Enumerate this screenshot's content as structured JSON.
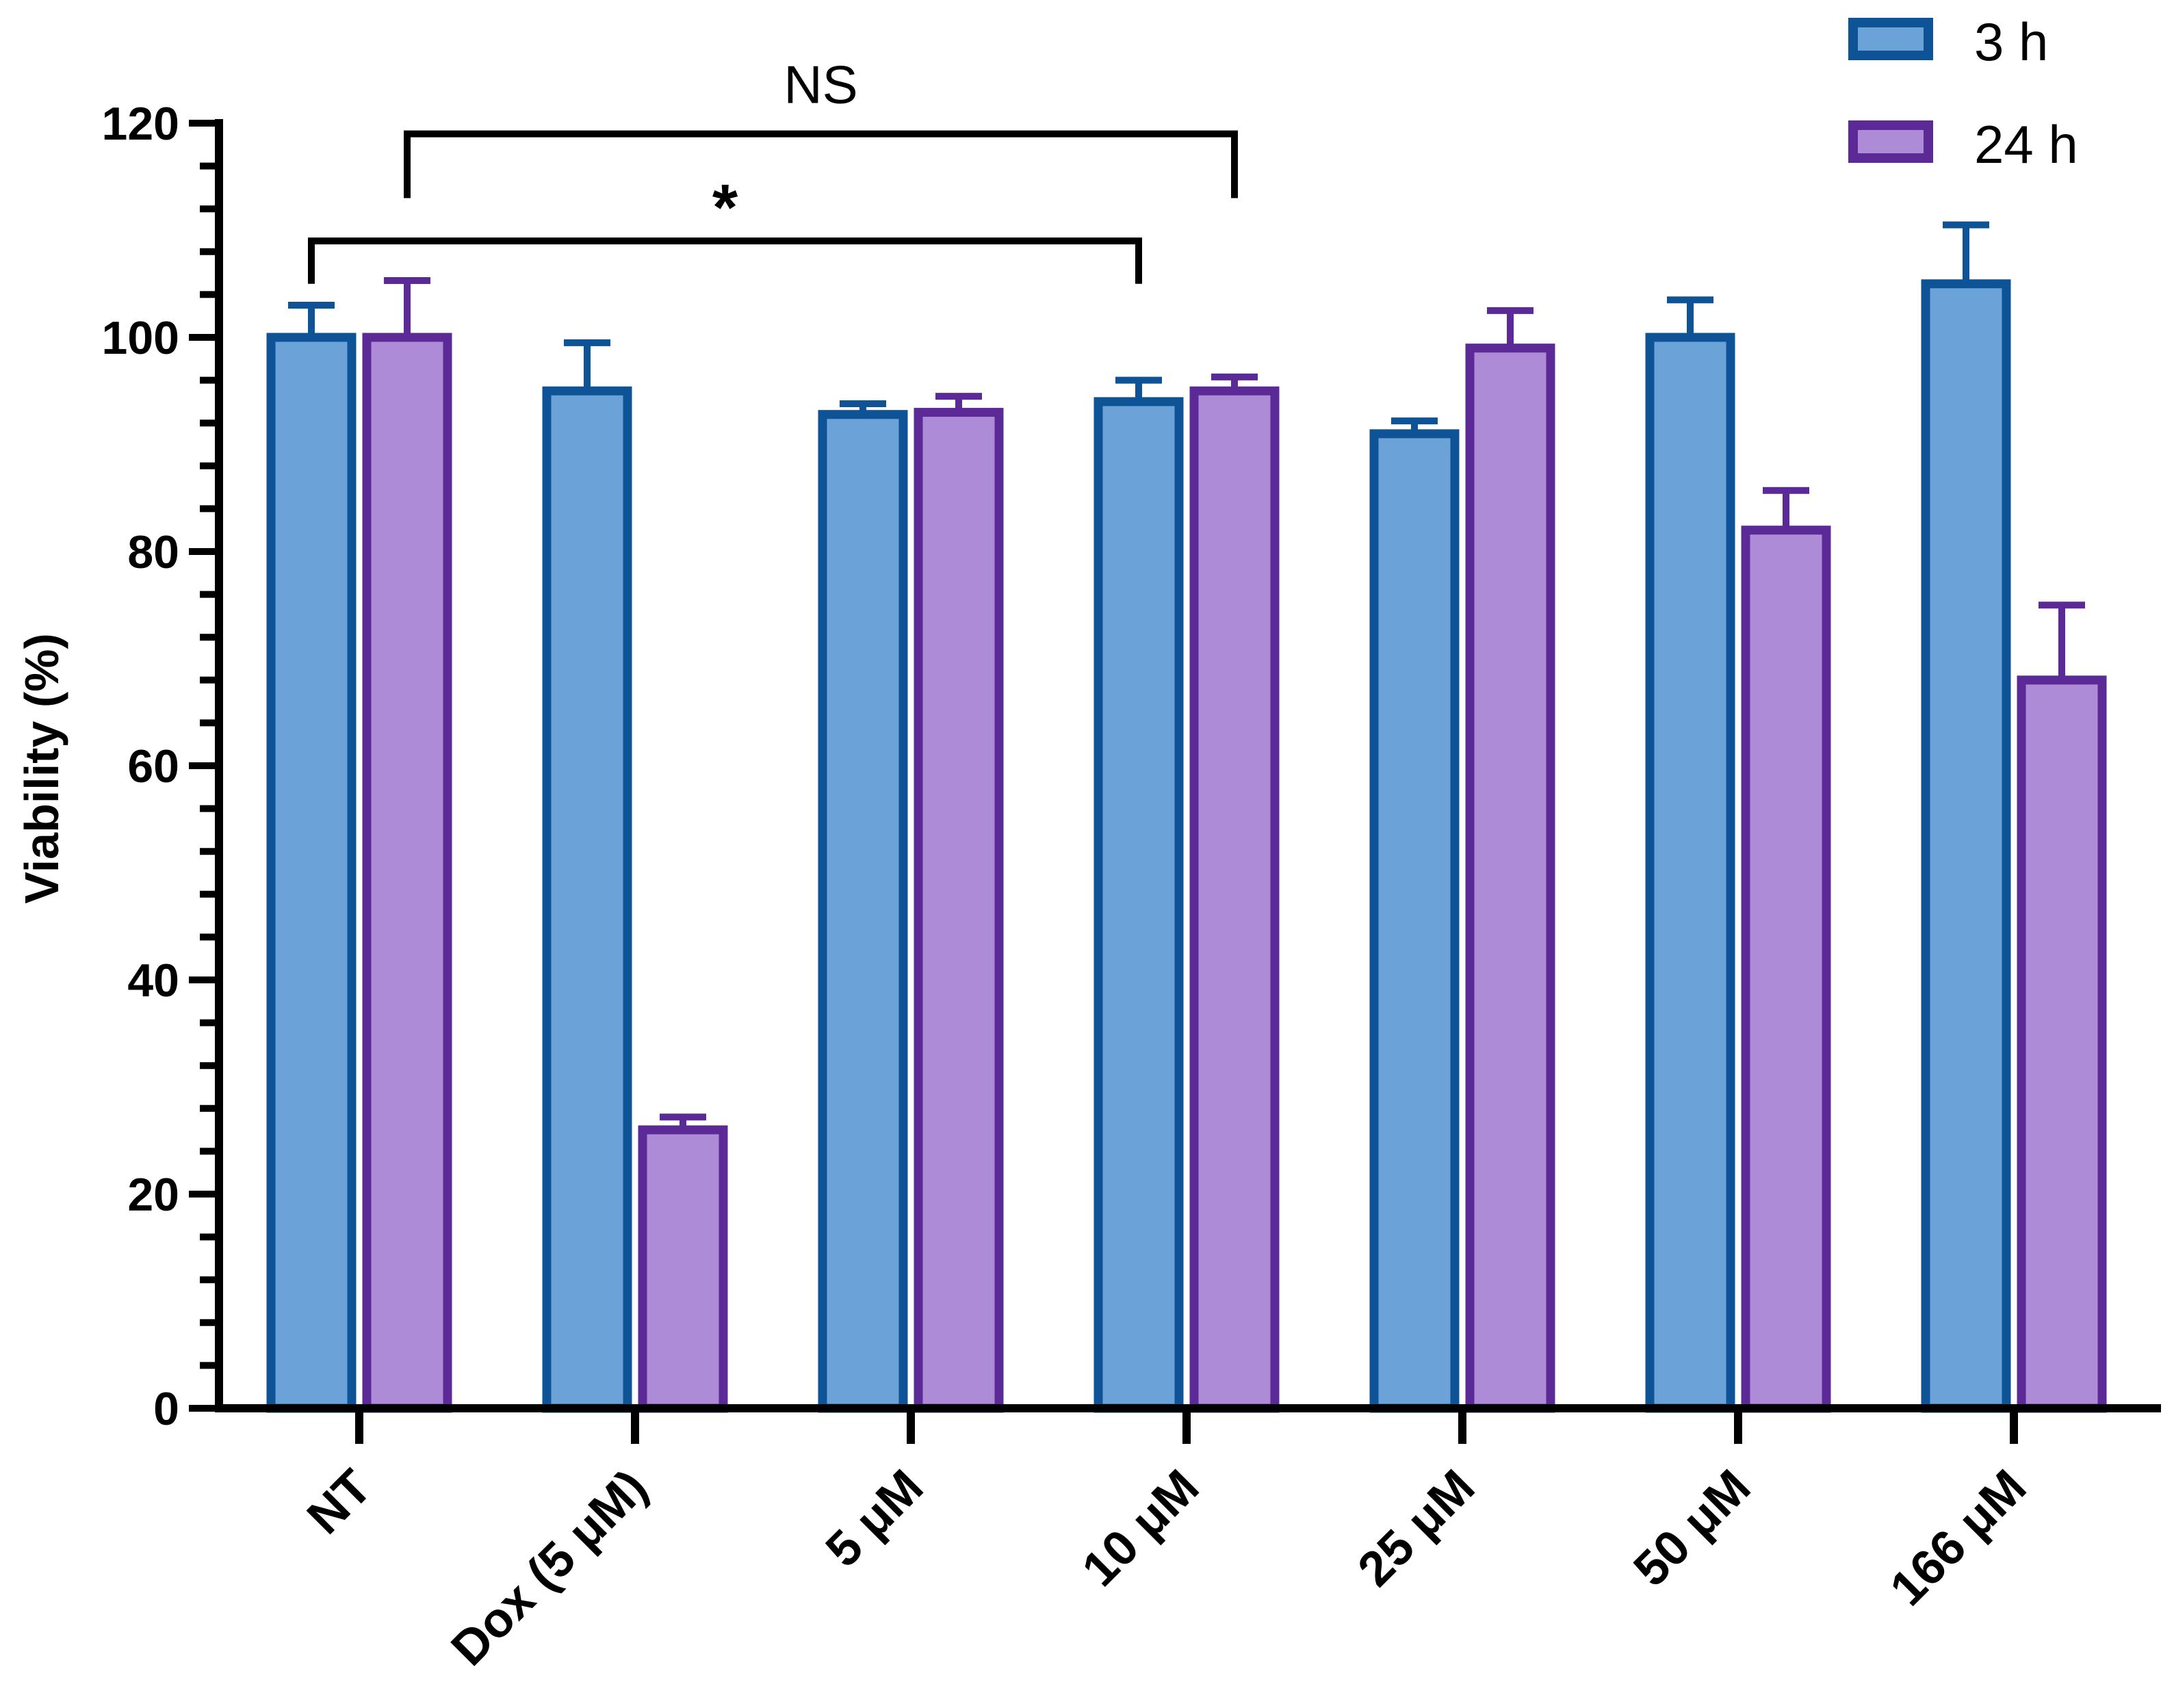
{
  "chart_data": {
    "type": "bar",
    "title": "",
    "xlabel": "",
    "ylabel": "Viability (%)",
    "ylim": [
      0,
      120
    ],
    "yticks": [
      0,
      20,
      40,
      60,
      80,
      100,
      120
    ],
    "categories": [
      "NT",
      "Dox (5 μM)",
      "5 μM",
      "10 μM",
      "25 μM",
      "50 μM",
      "166 μM"
    ],
    "series": [
      {
        "name": "3 h",
        "values": [
          100,
          95,
          92.8,
          94,
          91,
          100,
          105
        ],
        "errors": [
          3,
          4.5,
          1,
          2,
          1.2,
          3.5,
          5.5
        ],
        "fill": "#6BA3D9",
        "stroke": "#0D5395"
      },
      {
        "name": "24 h",
        "values": [
          100,
          26,
          93,
          95,
          99,
          82,
          68
        ],
        "errors": [
          5.3,
          1.2,
          1.5,
          1.3,
          3.5,
          3.7,
          7
        ],
        "fill": "#AE8BD6",
        "stroke": "#5B2A96"
      }
    ],
    "annotations": [
      {
        "label": "NS",
        "from_category": 0,
        "from_series": 1,
        "to_category": 3,
        "to_series": 1,
        "level": 119,
        "tip_low": 113
      },
      {
        "label": "*",
        "from_category": 0,
        "from_series": 0,
        "to_category": 3,
        "to_series": 0,
        "level": 109,
        "tip_low": 105
      }
    ],
    "legend": "top-right",
    "grid": false
  }
}
